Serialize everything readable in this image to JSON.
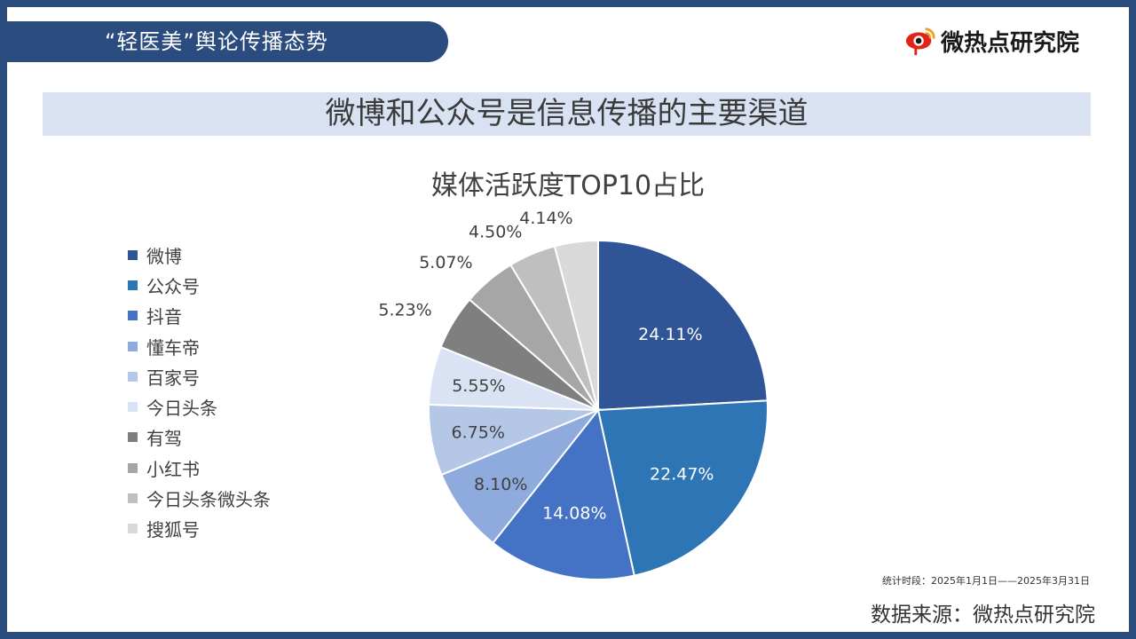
{
  "header": {
    "section_tag": "“轻医美”舆论传播态势",
    "logo_text": "微热点研究院"
  },
  "headline": "微博和公众号是信息传播的主要渠道",
  "chart_data": {
    "type": "pie",
    "title": "媒体活跃度TOP10占比",
    "categories": [
      "微博",
      "公众号",
      "抖音",
      "懂车帝",
      "百家号",
      "今日头条",
      "有驾",
      "小红书",
      "今日头条微头条",
      "搜狐号"
    ],
    "values": [
      24.11,
      22.47,
      14.08,
      8.1,
      6.75,
      5.55,
      5.23,
      5.07,
      4.5,
      4.14
    ],
    "labels": [
      "24.11%",
      "22.47%",
      "14.08%",
      "8.10%",
      "6.75%",
      "5.55%",
      "5.23%",
      "5.07%",
      "4.50%",
      "4.14%"
    ],
    "colors": [
      "#2f5597",
      "#2e75b6",
      "#4472c4",
      "#8faadc",
      "#b4c7e7",
      "#dae3f3",
      "#7f7f7f",
      "#a6a6a6",
      "#bfbfbf",
      "#d9d9d9"
    ],
    "label_colors": [
      "#ffffff",
      "#ffffff",
      "#ffffff",
      "#404040",
      "#404040",
      "#404040",
      "#404040",
      "#404040",
      "#404040",
      "#404040"
    ],
    "legend_position": "left"
  },
  "footer": {
    "period": "统计时段：2025年1月1日——2025年3月31日",
    "source": "数据来源：微热点研究院"
  }
}
